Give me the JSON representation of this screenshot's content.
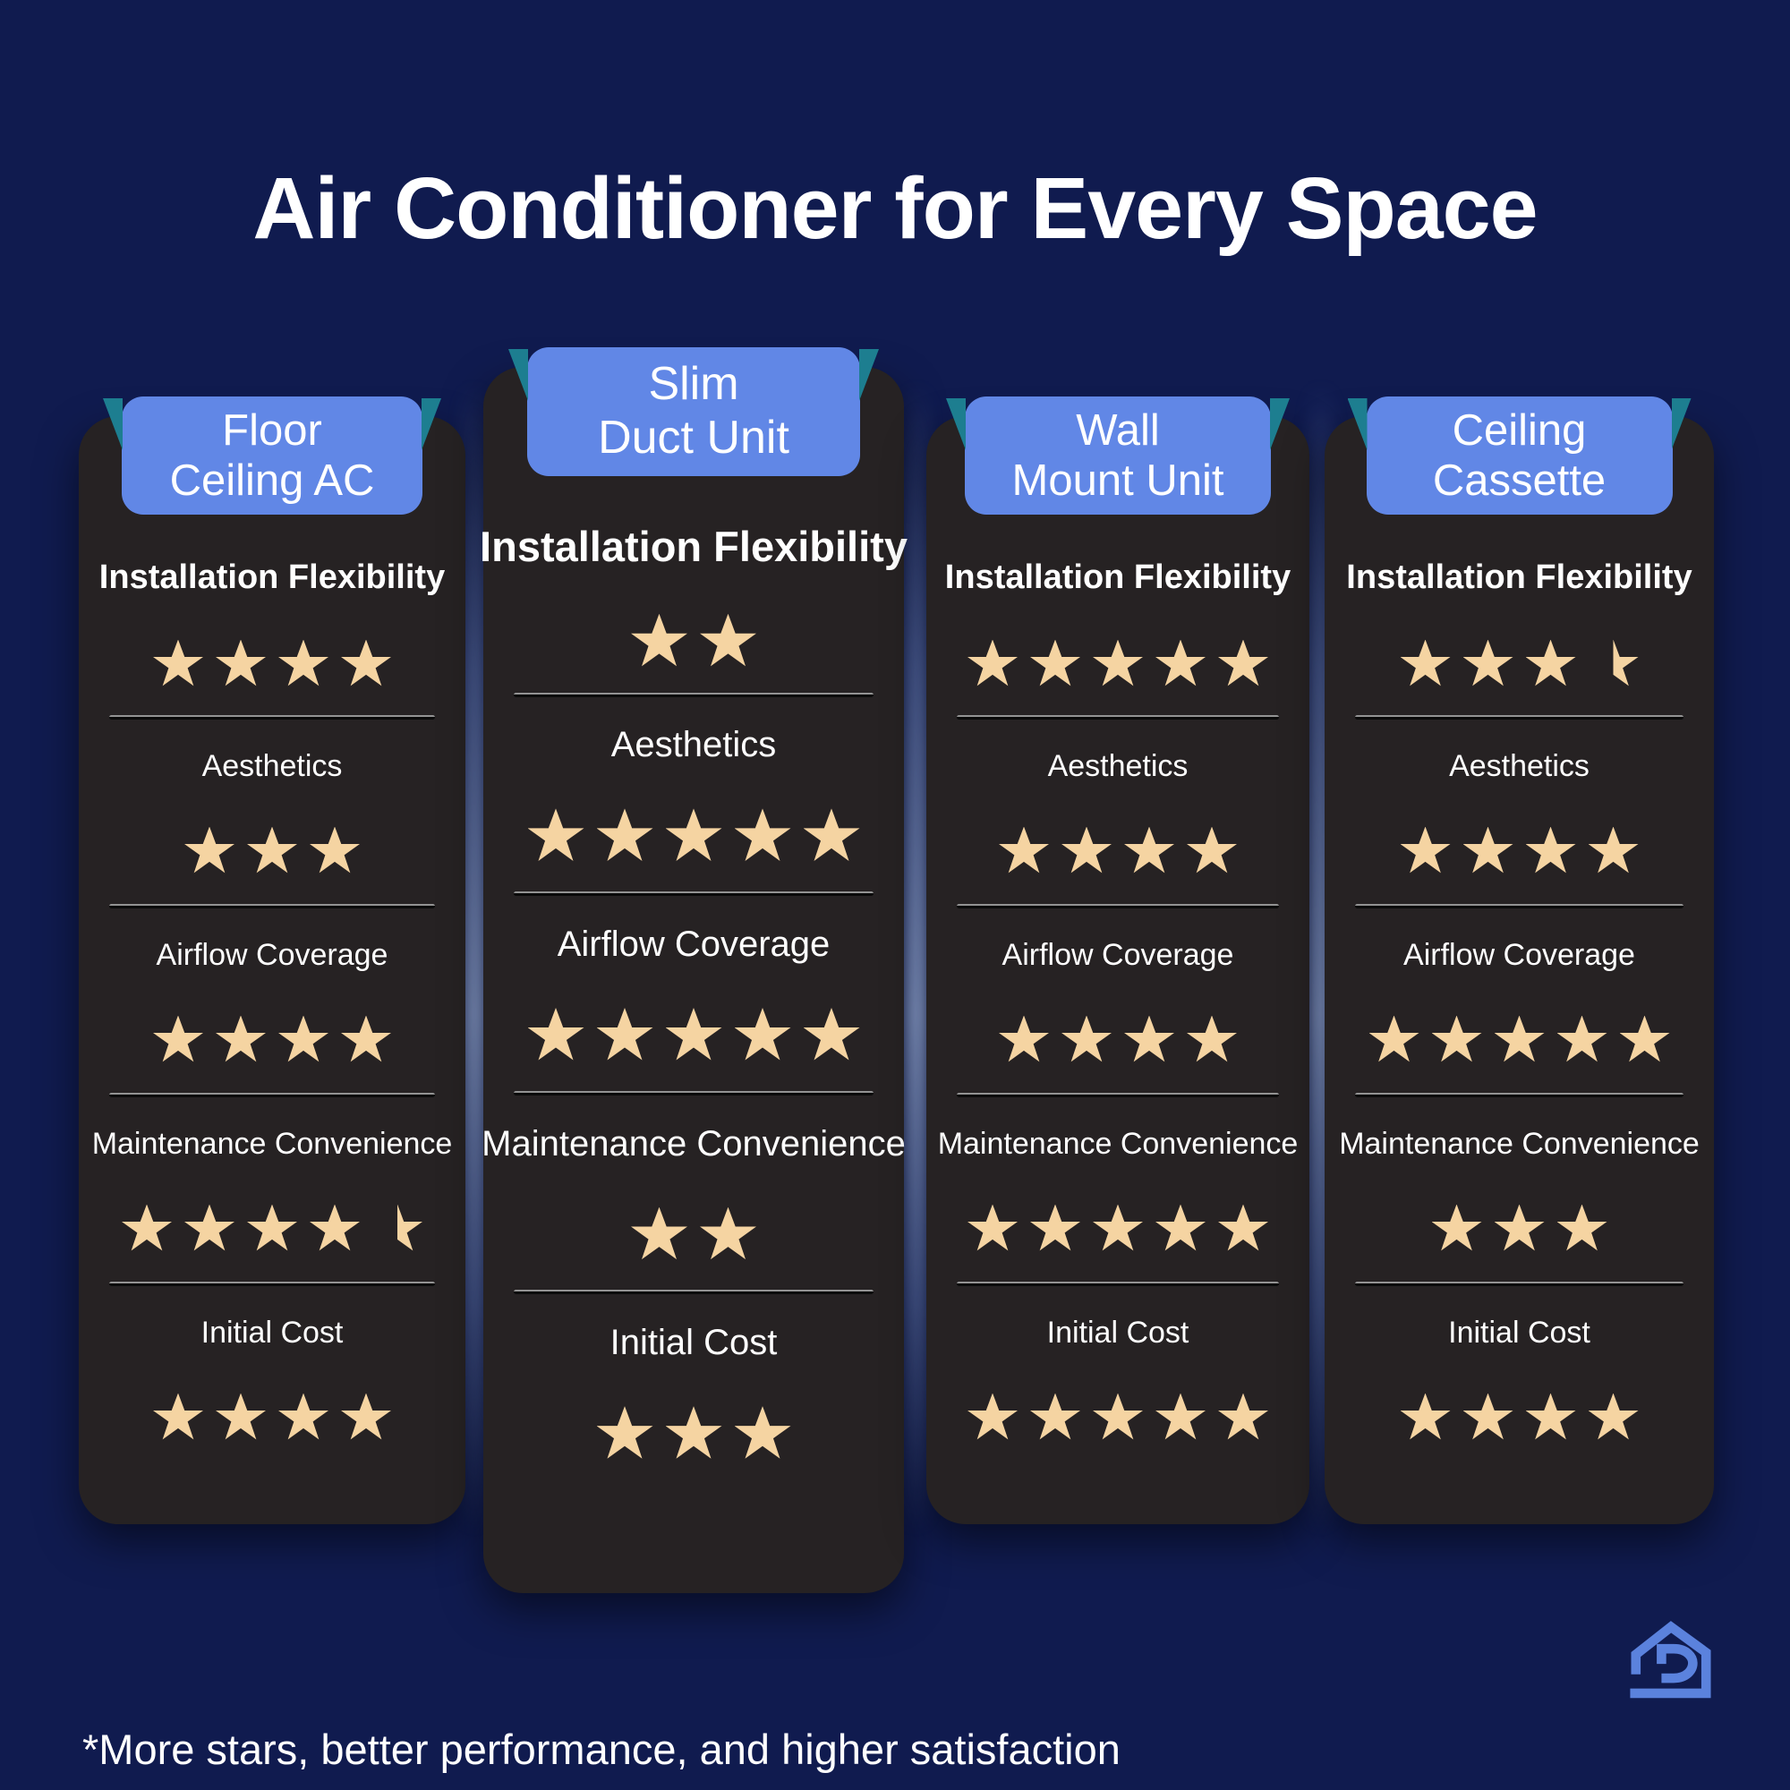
{
  "title": "Air Conditioner for Every Space",
  "footnote": "*More stars, better performance, and higher satisfaction",
  "colors": {
    "background": "#101B4F",
    "card": "#262223",
    "header_tag": "#6187E6",
    "ribbon_fold": "#1D7E90",
    "star": "#F5D4A2",
    "text": "#FFFFFF",
    "logo": "#5B82DD"
  },
  "categories": [
    "Installation Flexibility",
    "Aesthetics",
    "Airflow Coverage",
    "Maintenance Convenience",
    "Initial Cost"
  ],
  "columns": [
    {
      "name": "Floor Ceiling AC",
      "tag_lines": [
        "Floor",
        "Ceiling AC"
      ],
      "featured": false,
      "ratings": [
        4,
        3,
        4,
        4.5,
        4
      ]
    },
    {
      "name": "Slim Duct Unit",
      "tag_lines": [
        "Slim",
        "Duct Unit"
      ],
      "featured": true,
      "ratings": [
        2,
        5,
        5,
        2,
        3
      ]
    },
    {
      "name": "Wall Mount Unit",
      "tag_lines": [
        "Wall",
        "Mount Unit"
      ],
      "featured": false,
      "ratings": [
        5,
        4,
        4,
        5,
        5
      ]
    },
    {
      "name": "Ceiling Cassette",
      "tag_lines": [
        "Ceiling",
        "Cassette"
      ],
      "featured": false,
      "ratings": [
        3.5,
        4,
        5,
        3,
        4
      ]
    }
  ],
  "chart_data": {
    "type": "table",
    "title": "Air Conditioner for Every Space",
    "categories": [
      "Installation Flexibility",
      "Aesthetics",
      "Airflow Coverage",
      "Maintenance Convenience",
      "Initial Cost"
    ],
    "series": [
      {
        "name": "Floor Ceiling AC",
        "values": [
          4,
          3,
          4,
          4.5,
          4
        ]
      },
      {
        "name": "Slim Duct Unit",
        "values": [
          2,
          5,
          5,
          2,
          3
        ]
      },
      {
        "name": "Wall Mount Unit",
        "values": [
          5,
          4,
          4,
          5,
          5
        ]
      },
      {
        "name": "Ceiling Cassette",
        "values": [
          3.5,
          4,
          5,
          3,
          4
        ]
      }
    ],
    "value_scale": "stars, 0-5, half stars allowed",
    "legend_position": "none",
    "footnote": "*More stars, better performance, and higher satisfaction"
  }
}
